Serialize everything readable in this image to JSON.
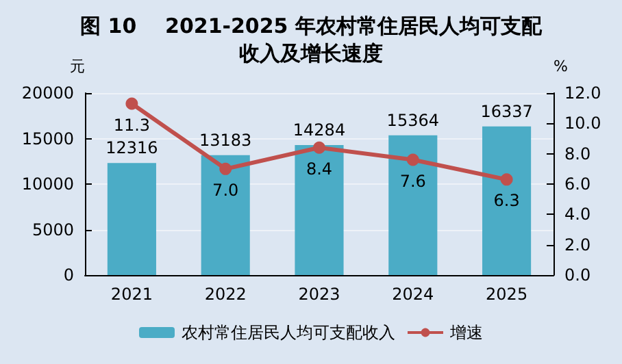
{
  "chart_data": {
    "type": "bar",
    "title": "图 10    2021-2025 年农村常住居民人均可支配收入及增长速度",
    "ylabel": "元",
    "y2label": "%",
    "categories": [
      "2021",
      "2022",
      "2023",
      "2024",
      "2025"
    ],
    "series": [
      {
        "name": "农村常住居民人均可支配收入",
        "color": "#4bacc6",
        "values": [
          12316,
          13183,
          14284,
          15364,
          16337
        ]
      },
      {
        "name": "增速",
        "type": "line",
        "axis": "y2",
        "color": "#c0504d",
        "values": [
          11.3,
          7.0,
          8.4,
          7.6,
          6.3
        ],
        "value_labels": [
          "11.3",
          "7.0",
          "8.4",
          "7.6",
          "6.3"
        ]
      }
    ],
    "ylim": [
      0,
      20000
    ],
    "yticks": [
      0,
      5000,
      10000,
      15000,
      20000
    ],
    "y2lim": [
      0,
      12
    ],
    "y2ticks": [
      {
        "value": 0,
        "label": "0.0"
      },
      {
        "value": 2,
        "label": "2.0"
      },
      {
        "value": 4,
        "label": "4.0"
      },
      {
        "value": 6,
        "label": "6.0"
      },
      {
        "value": 8,
        "label": "8.0"
      },
      {
        "value": 10,
        "label": "10.0"
      },
      {
        "value": 12,
        "label": "12.0"
      }
    ],
    "grid": "y",
    "legend": "bottom",
    "marker": "circle",
    "line_style": "solid",
    "data_labels": true
  }
}
